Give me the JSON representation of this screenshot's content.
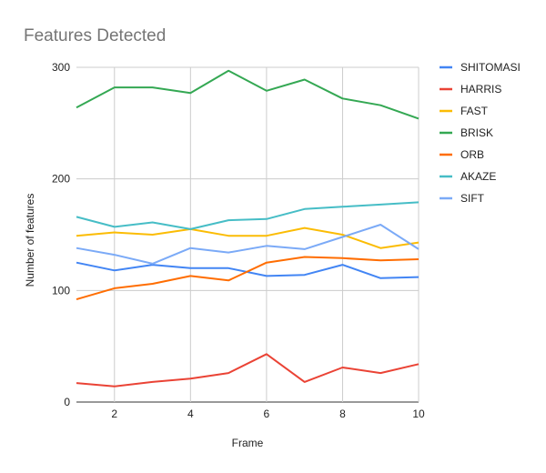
{
  "chart_data": {
    "type": "line",
    "title": "Features Detected",
    "xlabel": "Frame",
    "ylabel": "Number of features",
    "x": [
      1,
      2,
      3,
      4,
      5,
      6,
      7,
      8,
      9,
      10
    ],
    "x_ticks": [
      2,
      4,
      6,
      8,
      10
    ],
    "xlim": [
      1,
      10
    ],
    "y_ticks": [
      0,
      100,
      200,
      300
    ],
    "ylim": [
      0,
      300
    ],
    "grid": true,
    "legend_position": "right",
    "series": [
      {
        "name": "SHITOMASI",
        "color": "#4285f4",
        "values": [
          125,
          118,
          123,
          120,
          120,
          113,
          114,
          123,
          111,
          112
        ]
      },
      {
        "name": "HARRIS",
        "color": "#ea4335",
        "values": [
          17,
          14,
          18,
          21,
          26,
          43,
          18,
          31,
          26,
          34
        ]
      },
      {
        "name": "FAST",
        "color": "#fbbc04",
        "values": [
          149,
          152,
          150,
          155,
          149,
          149,
          156,
          150,
          138,
          143
        ]
      },
      {
        "name": "BRISK",
        "color": "#34a853",
        "values": [
          264,
          282,
          282,
          277,
          297,
          279,
          289,
          272,
          266,
          254
        ]
      },
      {
        "name": "ORB",
        "color": "#ff6d01",
        "values": [
          92,
          102,
          106,
          113,
          109,
          125,
          130,
          129,
          127,
          128
        ]
      },
      {
        "name": "AKAZE",
        "color": "#46bdc6",
        "values": [
          166,
          157,
          161,
          155,
          163,
          164,
          173,
          175,
          177,
          179
        ]
      },
      {
        "name": "SIFT",
        "color": "#7baaf7",
        "values": [
          138,
          132,
          124,
          138,
          134,
          140,
          137,
          148,
          159,
          137
        ]
      }
    ]
  }
}
